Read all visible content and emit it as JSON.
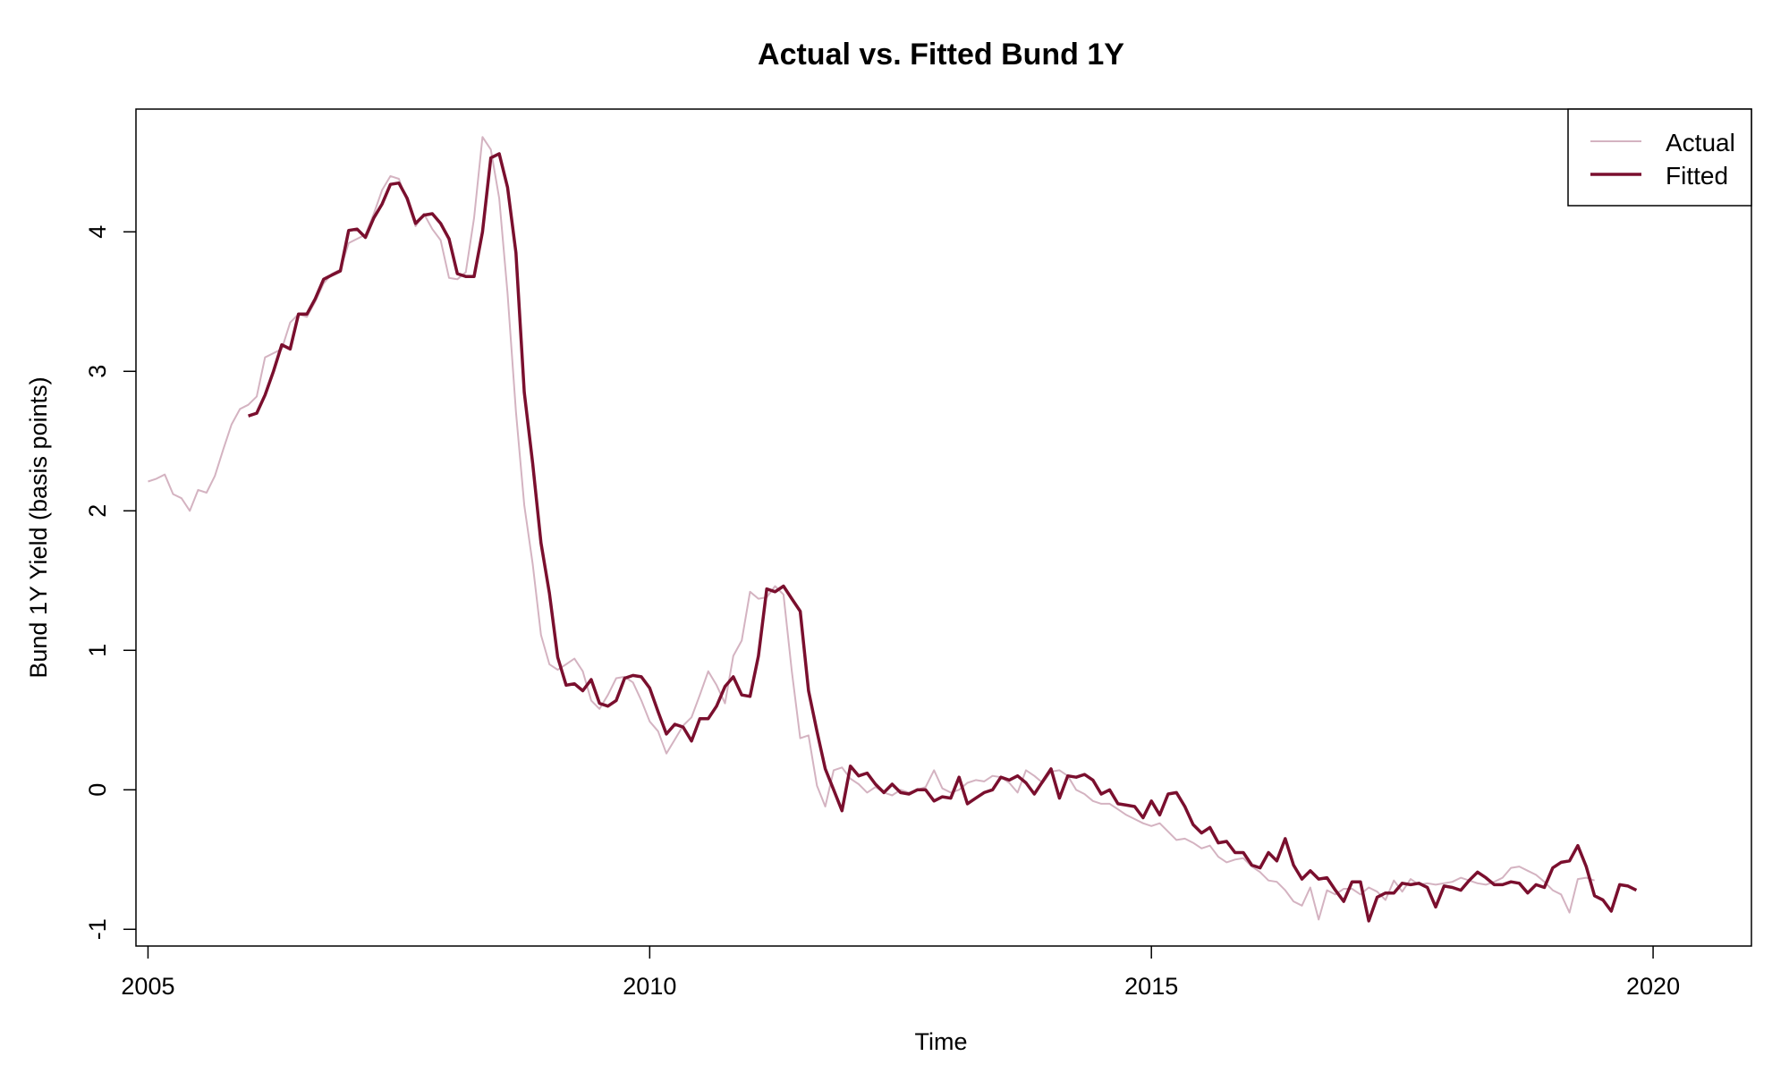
{
  "chart_data": {
    "type": "line",
    "title": "Actual vs. Fitted Bund 1Y",
    "xlabel": "Time",
    "ylabel": "Bund 1Y Yield (basis points)",
    "xlim": [
      2004.88,
      2020.98
    ],
    "ylim": [
      -1.12,
      4.88
    ],
    "x_ticks": [
      2005,
      2010,
      2015,
      2020
    ],
    "y_ticks": [
      -1,
      0,
      1,
      2,
      3,
      4
    ],
    "legend": {
      "position": "top-right"
    },
    "colors": {
      "actual": "#d4b3c1",
      "fitted": "#7a0f2e"
    },
    "series": [
      {
        "name": "Actual",
        "x_start": 2005.0,
        "x_step": 0.0833333,
        "values": [
          2.21,
          2.23,
          2.26,
          2.12,
          2.09,
          2.0,
          2.15,
          2.13,
          2.25,
          2.44,
          2.62,
          2.73,
          2.76,
          2.82,
          3.1,
          3.13,
          3.16,
          3.35,
          3.41,
          3.39,
          3.5,
          3.63,
          3.7,
          3.73,
          3.92,
          3.95,
          3.98,
          4.13,
          4.3,
          4.4,
          4.38,
          4.22,
          4.04,
          4.13,
          4.02,
          3.94,
          3.67,
          3.66,
          3.71,
          4.1,
          4.68,
          4.59,
          4.24,
          3.56,
          2.71,
          2.04,
          1.62,
          1.11,
          0.9,
          0.86,
          0.9,
          0.94,
          0.85,
          0.64,
          0.58,
          0.68,
          0.8,
          0.81,
          0.77,
          0.64,
          0.49,
          0.42,
          0.26,
          0.36,
          0.46,
          0.52,
          0.68,
          0.85,
          0.75,
          0.62,
          0.96,
          1.07,
          1.42,
          1.37,
          1.38,
          1.46,
          1.4,
          0.85,
          0.37,
          0.39,
          0.03,
          -0.12,
          0.14,
          0.16,
          0.08,
          0.04,
          -0.02,
          0.02,
          -0.02,
          -0.04,
          0.0,
          -0.02,
          0.0,
          0.02,
          0.14,
          0.01,
          -0.02,
          0.0,
          0.05,
          0.07,
          0.06,
          0.1,
          0.09,
          0.05,
          -0.02,
          0.14,
          0.1,
          0.05,
          0.13,
          0.14,
          0.1,
          0.0,
          -0.03,
          -0.08,
          -0.1,
          -0.1,
          -0.14,
          -0.18,
          -0.21,
          -0.24,
          -0.26,
          -0.24,
          -0.3,
          -0.36,
          -0.35,
          -0.38,
          -0.42,
          -0.4,
          -0.48,
          -0.52,
          -0.5,
          -0.49,
          -0.55,
          -0.59,
          -0.65,
          -0.66,
          -0.72,
          -0.8,
          -0.83,
          -0.7,
          -0.93,
          -0.72,
          -0.75,
          -0.71,
          -0.71,
          -0.75,
          -0.7,
          -0.73,
          -0.79,
          -0.65,
          -0.73,
          -0.64,
          -0.68,
          -0.67,
          -0.68,
          -0.67,
          -0.66,
          -0.63,
          -0.65,
          -0.67,
          -0.68,
          -0.66,
          -0.63,
          -0.56,
          -0.55,
          -0.58,
          -0.61,
          -0.66,
          -0.72,
          -0.75,
          -0.88,
          -0.64,
          -0.63,
          -0.65
        ]
      },
      {
        "name": "Fitted",
        "x_start": 2006.0,
        "x_step": 0.0833333,
        "values": [
          2.68,
          2.7,
          2.83,
          3.0,
          3.19,
          3.16,
          3.41,
          3.41,
          3.52,
          3.66,
          3.69,
          3.72,
          4.01,
          4.02,
          3.96,
          4.1,
          4.2,
          4.34,
          4.35,
          4.24,
          4.06,
          4.12,
          4.13,
          4.06,
          3.95,
          3.7,
          3.68,
          3.68,
          4.0,
          4.53,
          4.56,
          4.32,
          3.85,
          2.85,
          2.34,
          1.77,
          1.41,
          0.95,
          0.75,
          0.76,
          0.71,
          0.79,
          0.62,
          0.6,
          0.64,
          0.8,
          0.82,
          0.81,
          0.73,
          0.56,
          0.4,
          0.47,
          0.45,
          0.35,
          0.51,
          0.51,
          0.6,
          0.74,
          0.81,
          0.68,
          0.67,
          0.96,
          1.44,
          1.42,
          1.46,
          1.37,
          1.28,
          0.71,
          0.42,
          0.15,
          0.0,
          -0.15,
          0.17,
          0.1,
          0.12,
          0.04,
          -0.02,
          0.04,
          -0.02,
          -0.03,
          0.0,
          0.0,
          -0.08,
          -0.05,
          -0.06,
          0.09,
          -0.1,
          -0.06,
          -0.02,
          0.0,
          0.09,
          0.07,
          0.1,
          0.05,
          -0.03,
          0.06,
          0.15,
          -0.06,
          0.1,
          0.09,
          0.11,
          0.07,
          -0.03,
          0.0,
          -0.1,
          -0.11,
          -0.12,
          -0.2,
          -0.08,
          -0.18,
          -0.03,
          -0.02,
          -0.12,
          -0.25,
          -0.31,
          -0.27,
          -0.38,
          -0.37,
          -0.45,
          -0.45,
          -0.54,
          -0.56,
          -0.45,
          -0.51,
          -0.35,
          -0.54,
          -0.64,
          -0.58,
          -0.64,
          -0.63,
          -0.72,
          -0.8,
          -0.66,
          -0.66,
          -0.94,
          -0.77,
          -0.74,
          -0.74,
          -0.67,
          -0.68,
          -0.67,
          -0.7,
          -0.84,
          -0.69,
          -0.7,
          -0.72,
          -0.65,
          -0.59,
          -0.63,
          -0.68,
          -0.68,
          -0.66,
          -0.67,
          -0.74,
          -0.68,
          -0.7,
          -0.56,
          -0.52,
          -0.51,
          -0.4,
          -0.55,
          -0.76,
          -0.79,
          -0.87,
          -0.68,
          -0.69,
          -0.72
        ]
      }
    ]
  }
}
